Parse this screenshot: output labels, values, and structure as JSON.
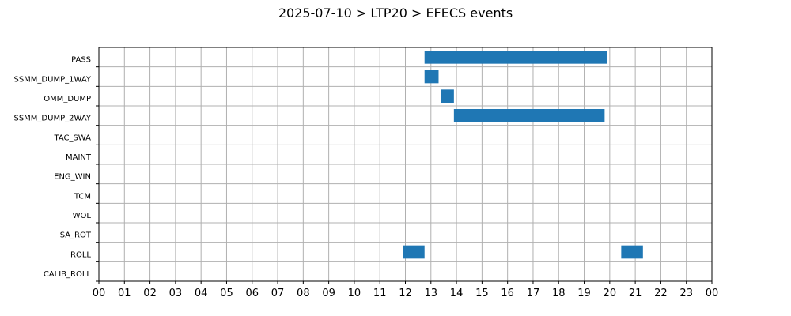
{
  "chart_data": {
    "type": "gantt",
    "title": "2025-07-10 > LTP20 > EFECS events",
    "xlabel": "",
    "ylabel": "",
    "xlim": [
      0,
      24
    ],
    "x_tick_labels": [
      "00",
      "01",
      "02",
      "03",
      "04",
      "05",
      "06",
      "07",
      "08",
      "09",
      "10",
      "11",
      "12",
      "13",
      "14",
      "15",
      "16",
      "17",
      "18",
      "19",
      "20",
      "21",
      "22",
      "23",
      "00"
    ],
    "categories": [
      "PASS",
      "SSMM_DUMP_1WAY",
      "OMM_DUMP",
      "SSMM_DUMP_2WAY",
      "TAC_SWA",
      "MAINT",
      "ENG_WIN",
      "TCM",
      "WOL",
      "SA_ROT",
      "ROLL",
      "CALIB_ROLL"
    ],
    "grid": true,
    "bar_color": "#1f77b4",
    "intervals": [
      {
        "category": "PASS",
        "start": 12.75,
        "end": 19.9
      },
      {
        "category": "SSMM_DUMP_1WAY",
        "start": 12.75,
        "end": 13.3
      },
      {
        "category": "OMM_DUMP",
        "start": 13.4,
        "end": 13.9
      },
      {
        "category": "SSMM_DUMP_2WAY",
        "start": 13.9,
        "end": 19.8
      },
      {
        "category": "ROLL",
        "start": 11.9,
        "end": 12.75
      },
      {
        "category": "ROLL",
        "start": 20.45,
        "end": 21.3
      }
    ]
  }
}
